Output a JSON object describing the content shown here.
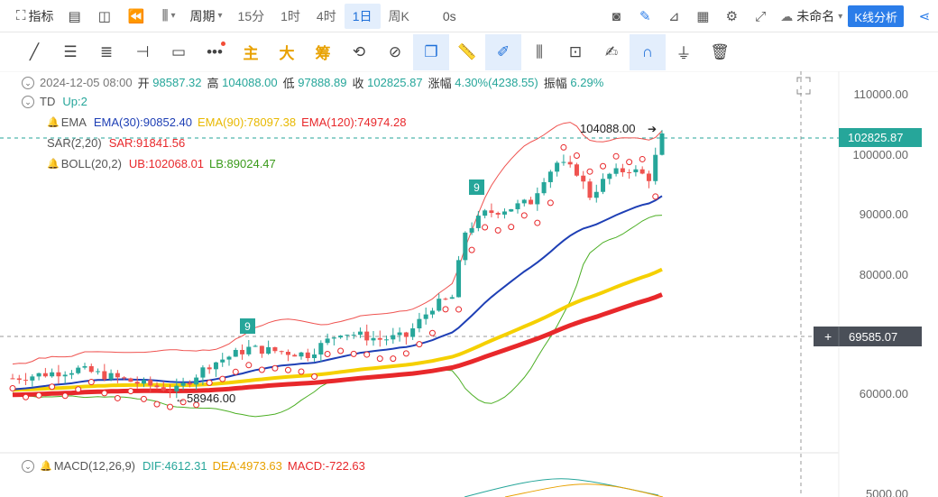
{
  "toolbar": {
    "indicator": "指标",
    "period": "周期",
    "periods": [
      "15分",
      "1时",
      "4时",
      "1日",
      "周K"
    ],
    "active_period": "1日",
    "countdown": "0s",
    "layout_name": "未命名",
    "analysis_button": "K线分析"
  },
  "drawing_tools": {
    "main": "主",
    "big": "大",
    "chip": "筹"
  },
  "ohlc": {
    "date": "2024-12-05 08:00",
    "open_label": "开",
    "open": "98587.32",
    "high_label": "高",
    "high": "104088.00",
    "low_label": "低",
    "low": "97888.89",
    "close_label": "收",
    "close": "102825.87",
    "change_label": "涨幅",
    "change": "4.30%(4238.55)",
    "amp_label": "振幅",
    "amp": "6.29%"
  },
  "td": {
    "name": "TD",
    "value": "Up:2"
  },
  "ema": {
    "name": "EMA",
    "ema30": "EMA(30):90852.40",
    "ema90": "EMA(90):78097.38",
    "ema120": "EMA(120):74974.28"
  },
  "sar": {
    "name": "SAR(2,20)",
    "value": "SAR:91841.56"
  },
  "boll": {
    "name": "BOLL(20,2)",
    "ub": "UB:102068.01",
    "lb": "LB:89024.47"
  },
  "macd": {
    "name": "MACD(12,26,9)",
    "dif": "DIF:4612.31",
    "dea": "DEA:4973.63",
    "macd": "MACD:-722.63"
  },
  "price_axis": {
    "ticks": [
      "110000.00",
      "100000.00",
      "90000.00",
      "80000.00",
      "60000.00"
    ],
    "current_price": "102825.87",
    "crosshair_price": "69585.07",
    "macd_tick": "5000.00"
  },
  "annotations": {
    "high_marker": "104088.00",
    "low_marker": "58946.00",
    "td_count_1": "9",
    "td_count_2": "9"
  },
  "colors": {
    "up": "#26a69a",
    "down": "#ef5350",
    "ema30": "#1e3fb5",
    "ema90": "#f5d000",
    "ema120": "#e8282b",
    "boll_ub": "#ef5350",
    "boll_lb": "#4caf24",
    "accent": "#2b7de9"
  },
  "chart_data": {
    "type": "candlestick",
    "x_unit": "day",
    "ylim": [
      52000,
      114000
    ],
    "high": 104088.0,
    "low": 58946.0,
    "last_close": 102825.87
  }
}
